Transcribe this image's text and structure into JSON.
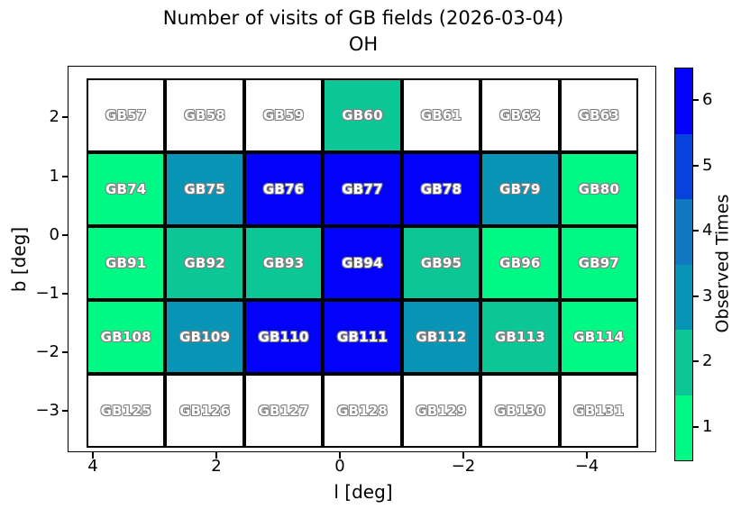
{
  "title": {
    "line1": "Number of visits of GB fields (2026-03-04)",
    "line2": "OH"
  },
  "axes": {
    "xlabel": "l [deg]",
    "ylabel": "b [deg]",
    "x_ticks": [
      "4",
      "2",
      "0",
      "−2",
      "−4"
    ],
    "y_ticks": [
      "2",
      "1",
      "0",
      "−1",
      "−2",
      "−3"
    ],
    "x_axis_inverted": true
  },
  "colorbar": {
    "label": "Observed Times",
    "ticks": [
      "1",
      "2",
      "3",
      "4",
      "5",
      "6"
    ],
    "orientation": "vertical-right",
    "segment_colors_low_to_high": [
      "#00f985",
      "#0bc795",
      "#0894b5",
      "#0e78c1",
      "#0742dd",
      "#0202fa"
    ]
  },
  "chart_data": {
    "type": "heatmap",
    "title": "Number of visits of GB fields (2026-03-04) OH",
    "xlabel": "l [deg]",
    "ylabel": "b [deg]",
    "x_tick_labels": [
      "4",
      "2",
      "0",
      "−2",
      "−4"
    ],
    "y_tick_labels": [
      "2",
      "1",
      "0",
      "−1",
      "−2",
      "−3"
    ],
    "colorbar_label": "Observed Times",
    "colorbar_ticks": [
      1,
      2,
      3,
      4,
      5,
      6
    ],
    "legend_position": "right",
    "grid": "off",
    "value_colors": {
      "0": "#ffffff",
      "1": "#00f985",
      "2": "#0bc795",
      "3": "#0894b5",
      "4": "#0e78c1",
      "5": "#0742dd",
      "6": "#0202fa"
    },
    "rows": [
      {
        "fields": [
          "GB57",
          "GB58",
          "GB59",
          "GB60",
          "GB61",
          "GB62",
          "GB63"
        ],
        "visits": [
          0,
          0,
          0,
          2,
          0,
          0,
          0
        ]
      },
      {
        "fields": [
          "GB74",
          "GB75",
          "GB76",
          "GB77",
          "GB78",
          "GB79",
          "GB80"
        ],
        "visits": [
          1,
          3,
          6,
          6,
          6,
          3,
          1
        ]
      },
      {
        "fields": [
          "GB91",
          "GB92",
          "GB93",
          "GB94",
          "GB95",
          "GB96",
          "GB97"
        ],
        "visits": [
          1,
          2,
          2,
          6,
          2,
          1,
          1
        ]
      },
      {
        "fields": [
          "GB108",
          "GB109",
          "GB110",
          "GB111",
          "GB112",
          "GB113",
          "GB114"
        ],
        "visits": [
          1,
          3,
          6,
          6,
          3,
          2,
          1
        ]
      },
      {
        "fields": [
          "GB125",
          "GB126",
          "GB127",
          "GB128",
          "GB129",
          "GB130",
          "GB131"
        ],
        "visits": [
          0,
          0,
          0,
          0,
          0,
          0,
          0
        ]
      }
    ]
  }
}
